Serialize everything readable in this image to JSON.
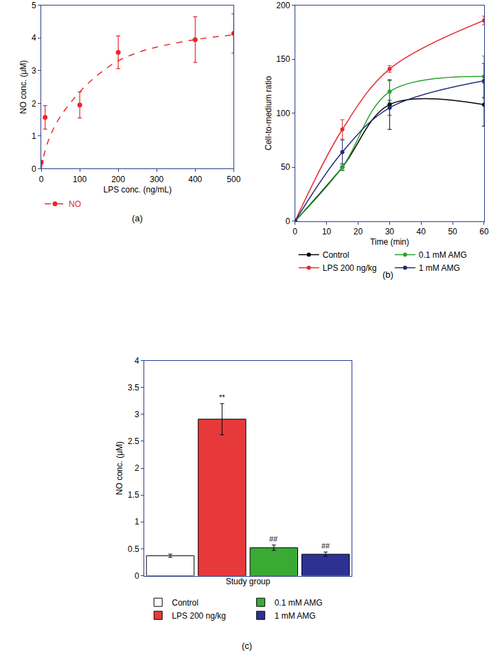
{
  "chart_data": [
    {
      "label": "(a)",
      "type": "scatter",
      "x_label": "LPS conc. (ng/mL)",
      "y_label": "NO conc. (μM)",
      "x": [
        0,
        10,
        100,
        200,
        400,
        500
      ],
      "xlim": [
        0,
        500
      ],
      "xticks": [
        0,
        100,
        200,
        300,
        400,
        500
      ],
      "ylim": [
        0,
        5
      ],
      "yticks": [
        0,
        1,
        2,
        3,
        4,
        5
      ],
      "legend": "bottom",
      "series": [
        {
          "name": "NO",
          "color": "#e8262c",
          "marker": "circle",
          "line_style": "dashed",
          "values": [
            0.2,
            1.57,
            1.95,
            3.56,
            3.95,
            4.14
          ],
          "errors": [
            0.05,
            0.36,
            0.4,
            0.5,
            0.7,
            0.6
          ],
          "fit": {
            "x": [
              0,
              10,
              25,
              50,
              100,
              150,
              200,
              250,
              300,
              400,
              500
            ],
            "values": [
              0,
              0.55,
              1.05,
              1.6,
              2.35,
              2.9,
              3.3,
              3.55,
              3.72,
              3.95,
              4.1
            ]
          }
        }
      ]
    },
    {
      "label": "(b)",
      "type": "line",
      "x_label": "Time (min)",
      "y_label": "Cell-to-medium ratio",
      "x": [
        0,
        15,
        30,
        60
      ],
      "xlim": [
        0,
        60
      ],
      "xticks": [
        0,
        10,
        20,
        30,
        40,
        50,
        60
      ],
      "ylim": [
        0,
        200
      ],
      "yticks": [
        0,
        50,
        100,
        150,
        200
      ],
      "legend": "bottom",
      "marker": "circle",
      "line_style": "solid",
      "series": [
        {
          "name": "Control",
          "color": "#000000",
          "values": [
            0,
            50,
            108,
            108
          ],
          "errors": [
            0,
            3,
            23,
            20
          ]
        },
        {
          "name": "LPS 200 ng/kg",
          "color": "#e8262c",
          "values": [
            0,
            85,
            141,
            186
          ],
          "errors": [
            0,
            9,
            3,
            4
          ]
        },
        {
          "name": "0.1 mM AMG",
          "color": "#27a12e",
          "values": [
            0,
            50,
            120,
            134
          ],
          "errors": [
            0,
            3,
            10,
            19
          ]
        },
        {
          "name": "1 mM AMG",
          "color": "#1f2a7a",
          "values": [
            0,
            64,
            105,
            130
          ],
          "errors": [
            0,
            11,
            7,
            16
          ]
        }
      ]
    },
    {
      "label": "(c)",
      "type": "bar",
      "x_label": "Study group",
      "y_label": "NO conc. (μM)",
      "ylim": [
        0,
        4
      ],
      "yticks": [
        0,
        0.5,
        1,
        1.5,
        2,
        2.5,
        3,
        3.5,
        4
      ],
      "tick_labels": "y",
      "legend": "bottom",
      "series": [
        {
          "name": "Control",
          "color": "#ffffff",
          "values": [
            0.37
          ],
          "errors": [
            0.03
          ]
        },
        {
          "name": "LPS 200 ng/kg",
          "color": "#e8393a",
          "values": [
            2.91
          ],
          "errors": [
            0.29
          ],
          "annotation": "**"
        },
        {
          "name": "0.1 mM AMG",
          "color": "#3aaa35",
          "values": [
            0.52
          ],
          "errors": [
            0.05
          ],
          "annotation": "##"
        },
        {
          "name": "1 mM AMG",
          "color": "#2d3192",
          "values": [
            0.4
          ],
          "errors": [
            0.04
          ],
          "annotation": "##"
        }
      ]
    }
  ]
}
